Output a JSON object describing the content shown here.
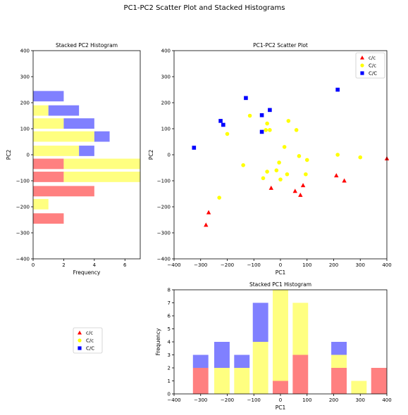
{
  "figure": {
    "suptitle": "PC1-PC2 Scatter Plot and Stacked Histograms"
  },
  "colors": {
    "c/c": "#ff8080",
    "C/c": "#ffff80",
    "C/C": "#8080ff",
    "marker_cc": "#ff0000",
    "marker_Cc": "#ffff00",
    "marker_CC": "#0000ff"
  },
  "legend_labels": [
    "c/c",
    "C/c",
    "C/C"
  ],
  "chart_data": [
    {
      "id": "pc2hist",
      "type": "bar",
      "orientation": "horizontal",
      "stacked": true,
      "title": "Stacked PC2 Histogram",
      "xlabel": "Frequency",
      "ylabel": "PC2",
      "xlim": [
        0,
        7
      ],
      "ylim": [
        -400,
        400
      ],
      "xticks": [
        "0",
        "2",
        "4",
        "6"
      ],
      "yticks": [
        "400",
        "300",
        "200",
        "100",
        "0",
        "−100",
        "−200",
        "−300",
        "−400"
      ],
      "bins": [
        {
          "center": 225,
          "c/c": 0,
          "C/c": 0,
          "C/C": 2
        },
        {
          "center": 170,
          "c/c": 0,
          "C/c": 1,
          "C/C": 2
        },
        {
          "center": 120,
          "c/c": 0,
          "C/c": 2,
          "C/C": 2
        },
        {
          "center": 70,
          "c/c": 0,
          "C/c": 4,
          "C/C": 1
        },
        {
          "center": 15,
          "c/c": 0,
          "C/c": 3,
          "C/C": 1
        },
        {
          "center": -35,
          "c/c": 2,
          "C/c": 5,
          "C/C": 0
        },
        {
          "center": -85,
          "c/c": 2,
          "C/c": 5,
          "C/C": 0
        },
        {
          "center": -140,
          "c/c": 4,
          "C/c": 0,
          "C/C": 0
        },
        {
          "center": -190,
          "c/c": 0,
          "C/c": 1,
          "C/C": 0
        },
        {
          "center": -245,
          "c/c": 2,
          "C/c": 0,
          "C/C": 0
        }
      ]
    },
    {
      "id": "scatter",
      "type": "scatter",
      "title": "PC1-PC2 Scatter Plot",
      "xlabel": "PC1",
      "ylabel": "PC2",
      "xlim": [
        -400,
        400
      ],
      "ylim": [
        -400,
        400
      ],
      "xticks": [
        "−400",
        "−300",
        "−200",
        "−100",
        "0",
        "100",
        "200",
        "300",
        "400"
      ],
      "yticks": [
        "400",
        "300",
        "200",
        "100",
        "0",
        "−100",
        "−200",
        "−300",
        "−400"
      ],
      "legend": "top-right",
      "series": [
        {
          "name": "c/c",
          "marker": "triangle",
          "points": [
            [
              -280,
              -270
            ],
            [
              -270,
              -222
            ],
            [
              -35,
              -128
            ],
            [
              55,
              -140
            ],
            [
              75,
              -155
            ],
            [
              85,
              -118
            ],
            [
              210,
              -80
            ],
            [
              240,
              -100
            ],
            [
              400,
              -15
            ]
          ]
        },
        {
          "name": "C/c",
          "marker": "circle",
          "points": [
            [
              -115,
              150
            ],
            [
              -50,
              120
            ],
            [
              -55,
              95
            ],
            [
              -40,
              95
            ],
            [
              30,
              130
            ],
            [
              60,
              95
            ],
            [
              -200,
              80
            ],
            [
              15,
              30
            ],
            [
              70,
              -5
            ],
            [
              100,
              -20
            ],
            [
              215,
              0
            ],
            [
              300,
              -10
            ],
            [
              -140,
              -40
            ],
            [
              -5,
              -30
            ],
            [
              -15,
              -60
            ],
            [
              -50,
              -65
            ],
            [
              25,
              -75
            ],
            [
              95,
              -75
            ],
            [
              -65,
              -90
            ],
            [
              0,
              -95
            ],
            [
              -230,
              -165
            ]
          ]
        },
        {
          "name": "C/C",
          "marker": "square",
          "points": [
            [
              215,
              250
            ],
            [
              -130,
              218
            ],
            [
              -40,
              172
            ],
            [
              -70,
              152
            ],
            [
              -225,
              130
            ],
            [
              -215,
              115
            ],
            [
              -70,
              88
            ],
            [
              -325,
              27
            ]
          ]
        }
      ]
    },
    {
      "id": "pc1hist",
      "type": "bar",
      "stacked": true,
      "title": "Stacked PC1 Histogram",
      "xlabel": "PC1",
      "ylabel": "Frequency",
      "xlim": [
        -400,
        400
      ],
      "ylim": [
        0,
        8
      ],
      "xticks": [
        "−400",
        "−300",
        "−200",
        "−100",
        "0",
        "100",
        "200",
        "300",
        "400"
      ],
      "yticks": [
        "0",
        "1",
        "2",
        "3",
        "4",
        "5",
        "6",
        "7",
        "8"
      ],
      "bins": [
        {
          "center": -300,
          "c/c": 2,
          "C/c": 0,
          "C/C": 1
        },
        {
          "center": -220,
          "c/c": 0,
          "C/c": 2,
          "C/C": 2
        },
        {
          "center": -145,
          "c/c": 0,
          "C/c": 2,
          "C/C": 1
        },
        {
          "center": -75,
          "c/c": 0,
          "C/c": 4,
          "C/C": 3
        },
        {
          "center": 0,
          "c/c": 1,
          "C/c": 7,
          "C/C": 0
        },
        {
          "center": 75,
          "c/c": 3,
          "C/c": 4,
          "C/C": 0
        },
        {
          "center": 220,
          "c/c": 2,
          "C/c": 1,
          "C/C": 1
        },
        {
          "center": 295,
          "c/c": 0,
          "C/c": 1,
          "C/C": 0
        },
        {
          "center": 370,
          "c/c": 2,
          "C/c": 0,
          "C/C": 0
        }
      ]
    }
  ]
}
